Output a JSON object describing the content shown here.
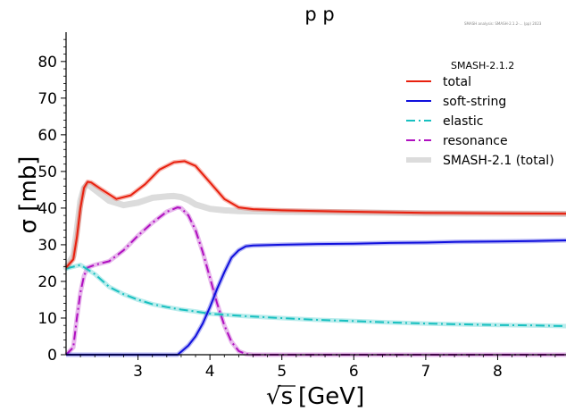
{
  "chart_data": {
    "type": "line",
    "title": "p p",
    "watermark": "SMASH analysis: SMASH-2.1.2-... (pp) 2023",
    "xlabel": "[GeV]",
    "xlabel_sqrt": "√s",
    "ylabel": "σ [mb]",
    "xlim": [
      2.0,
      8.95
    ],
    "ylim": [
      0,
      88
    ],
    "xticks": [
      3,
      4,
      5,
      6,
      7,
      8
    ],
    "yticks": [
      0,
      10,
      20,
      30,
      40,
      50,
      60,
      70,
      80
    ],
    "legend": {
      "title": "SMASH-2.1.2",
      "placement": "top-right"
    },
    "series": [
      {
        "name": "total",
        "color": "#e8200e",
        "style": "solid",
        "key": "total",
        "x": [
          2.0,
          2.1,
          2.15,
          2.2,
          2.25,
          2.3,
          2.35,
          2.5,
          2.7,
          2.9,
          3.1,
          3.3,
          3.5,
          3.65,
          3.8,
          4.0,
          4.2,
          4.4,
          4.6,
          5.0,
          6.0,
          7.0,
          8.0,
          8.95
        ],
        "y": [
          23.8,
          26.0,
          32.0,
          40.0,
          45.5,
          47.2,
          47.0,
          45.0,
          42.5,
          43.5,
          46.5,
          50.5,
          52.5,
          52.8,
          51.5,
          47.0,
          42.5,
          40.2,
          39.7,
          39.4,
          39.0,
          38.7,
          38.6,
          38.5
        ]
      },
      {
        "name": "soft-string",
        "color": "#1010dd",
        "style": "solid",
        "key": "soft",
        "x": [
          2.0,
          3.55,
          3.6,
          3.7,
          3.8,
          3.9,
          4.0,
          4.1,
          4.2,
          4.3,
          4.4,
          4.5,
          4.6,
          5.0,
          5.5,
          6.0,
          6.5,
          7.0,
          7.5,
          8.0,
          8.5,
          8.95
        ],
        "y": [
          0,
          0,
          0.8,
          2.5,
          5.0,
          8.5,
          13.0,
          18.0,
          22.5,
          26.5,
          28.5,
          29.6,
          29.8,
          30.0,
          30.2,
          30.3,
          30.5,
          30.6,
          30.8,
          30.9,
          31.0,
          31.2
        ]
      },
      {
        "name": "elastic",
        "color": "#18c0c0",
        "style": "dashdot",
        "key": "elastic",
        "x": [
          2.0,
          2.2,
          2.4,
          2.6,
          2.8,
          3.0,
          3.2,
          3.4,
          3.6,
          3.8,
          4.0,
          4.5,
          5.0,
          5.5,
          6.0,
          6.5,
          7.0,
          7.5,
          8.0,
          8.5,
          8.95
        ],
        "y": [
          23.5,
          24.5,
          22.0,
          18.5,
          16.5,
          15.0,
          13.8,
          13.0,
          12.3,
          11.8,
          11.2,
          10.5,
          10.0,
          9.5,
          9.2,
          8.8,
          8.5,
          8.3,
          8.1,
          8.0,
          7.8
        ]
      },
      {
        "name": "resonance",
        "color": "#b010c0",
        "style": "dashdot",
        "key": "resonance",
        "x": [
          2.0,
          2.1,
          2.15,
          2.2,
          2.25,
          2.3,
          2.4,
          2.6,
          2.8,
          3.0,
          3.2,
          3.4,
          3.55,
          3.6,
          3.7,
          3.8,
          3.9,
          4.0,
          4.1,
          4.2,
          4.3,
          4.4,
          4.5,
          4.6,
          8.95
        ],
        "y": [
          0,
          2.0,
          10.0,
          17.0,
          21.5,
          23.8,
          24.5,
          25.5,
          28.5,
          32.5,
          36.0,
          39.0,
          40.2,
          40.0,
          38.0,
          34.0,
          28.0,
          21.0,
          14.0,
          8.0,
          3.5,
          1.0,
          0.2,
          0,
          0
        ]
      },
      {
        "name": "SMASH-2.1 (total)",
        "color": "#dcdcdc",
        "style": "solid",
        "key": "smash21",
        "x": [
          2.0,
          2.1,
          2.15,
          2.2,
          2.25,
          2.3,
          2.4,
          2.6,
          2.8,
          3.0,
          3.2,
          3.4,
          3.5,
          3.6,
          3.7,
          3.8,
          4.0,
          4.2,
          4.4,
          5.0,
          6.0,
          7.0,
          8.0,
          8.95
        ],
        "y": [
          23.8,
          27.0,
          34.0,
          42.0,
          45.5,
          46.5,
          45.0,
          42.0,
          40.8,
          41.5,
          42.8,
          43.2,
          43.3,
          43.0,
          42.2,
          41.0,
          39.8,
          39.4,
          39.2,
          39.0,
          38.8,
          38.6,
          38.5,
          38.4
        ]
      }
    ]
  }
}
